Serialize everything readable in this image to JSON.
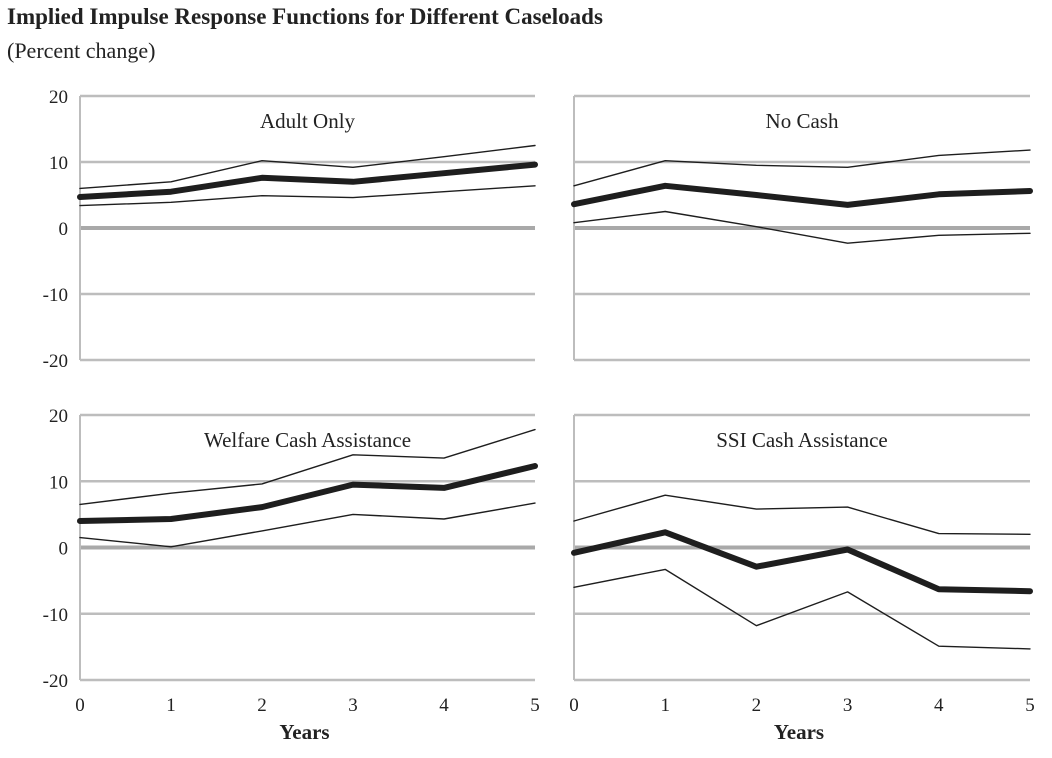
{
  "header": {
    "title": "Implied Impulse Response Functions for Different Caseloads",
    "subtitle": "(Percent change)"
  },
  "chart_data": [
    {
      "type": "line",
      "title": "Adult Only",
      "xlabel": "",
      "ylabel": "",
      "x": [
        0,
        1,
        2,
        3,
        4,
        5
      ],
      "ylim": [
        -20,
        20
      ],
      "y_ticks": [
        "20",
        "10",
        "0",
        "-10",
        "-20"
      ],
      "x_ticks": [],
      "grid": true,
      "series": [
        {
          "role": "estimate",
          "values": [
            4.7,
            5.5,
            7.6,
            7.0,
            8.3,
            9.6
          ]
        },
        {
          "role": "upper",
          "values": [
            6.0,
            7.0,
            10.2,
            9.2,
            10.8,
            12.5
          ]
        },
        {
          "role": "lower",
          "values": [
            3.4,
            3.9,
            4.9,
            4.6,
            5.5,
            6.4
          ]
        }
      ]
    },
    {
      "type": "line",
      "title": "No Cash",
      "xlabel": "",
      "ylabel": "",
      "x": [
        0,
        1,
        2,
        3,
        4,
        5
      ],
      "ylim": [
        -20,
        20
      ],
      "y_ticks": [],
      "x_ticks": [],
      "grid": true,
      "series": [
        {
          "role": "estimate",
          "values": [
            3.6,
            6.4,
            5.0,
            3.5,
            5.1,
            5.6
          ]
        },
        {
          "role": "upper",
          "values": [
            6.4,
            10.2,
            9.5,
            9.2,
            11.0,
            11.8
          ]
        },
        {
          "role": "lower",
          "values": [
            0.8,
            2.5,
            0.2,
            -2.3,
            -1.1,
            -0.8
          ]
        }
      ]
    },
    {
      "type": "line",
      "title": "Welfare Cash Assistance",
      "xlabel": "Years",
      "ylabel": "",
      "x": [
        0,
        1,
        2,
        3,
        4,
        5
      ],
      "ylim": [
        -20,
        20
      ],
      "y_ticks": [
        "20",
        "10",
        "0",
        "-10",
        "-20"
      ],
      "x_ticks": [
        "0",
        "1",
        "2",
        "3",
        "4",
        "5"
      ],
      "grid": true,
      "series": [
        {
          "role": "estimate",
          "values": [
            4.0,
            4.3,
            6.1,
            9.5,
            9.0,
            12.3
          ]
        },
        {
          "role": "upper",
          "values": [
            6.5,
            8.2,
            9.6,
            14.0,
            13.5,
            17.8
          ]
        },
        {
          "role": "lower",
          "values": [
            1.5,
            0.1,
            2.5,
            5.0,
            4.3,
            6.7
          ]
        }
      ]
    },
    {
      "type": "line",
      "title": "SSI Cash Assistance",
      "xlabel": "Years",
      "ylabel": "",
      "x": [
        0,
        1,
        2,
        3,
        4,
        5
      ],
      "ylim": [
        -20,
        20
      ],
      "y_ticks": [],
      "x_ticks": [
        "0",
        "1",
        "2",
        "3",
        "4",
        "5"
      ],
      "grid": true,
      "series": [
        {
          "role": "estimate",
          "values": [
            -0.8,
            2.3,
            -2.9,
            -0.3,
            -6.3,
            -6.6
          ]
        },
        {
          "role": "upper",
          "values": [
            4.0,
            7.9,
            5.8,
            6.1,
            2.1,
            2.0
          ]
        },
        {
          "role": "lower",
          "values": [
            -6.0,
            -3.3,
            -11.8,
            -6.7,
            -14.9,
            -15.3
          ]
        }
      ]
    }
  ],
  "colors": {
    "grid": "#bdbdbd",
    "zero_line": "#a9a9a9",
    "estimate": "#1e1e1e",
    "band": "#1e1e1e",
    "text": "#222222"
  }
}
